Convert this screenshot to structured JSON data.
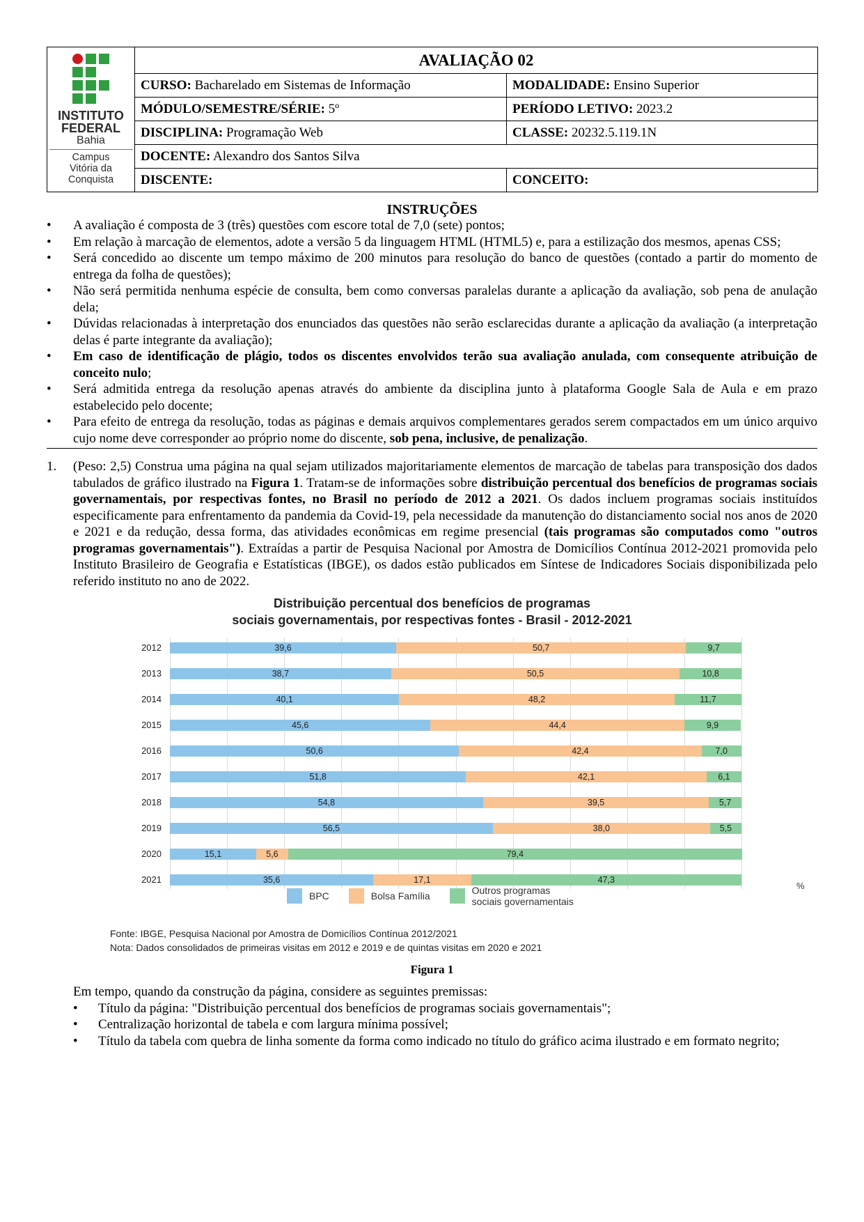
{
  "header": {
    "title": "AVALIAÇÃO 02",
    "logo": {
      "name": "INSTITUTO\nFEDERAL",
      "state": "Bahia",
      "campus": "Campus\nVitória da\nConquista"
    },
    "rows": [
      {
        "left_label": "CURSO:",
        "left_value": "Bacharelado em Sistemas de Informação",
        "right_label": "MODALIDADE:",
        "right_value": "Ensino Superior"
      },
      {
        "left_label": "MÓDULO/SEMESTRE/SÉRIE:",
        "left_value": "5º",
        "right_label": "PERÍODO LETIVO:",
        "right_value": "2023.2"
      },
      {
        "left_label": "DISCIPLINA:",
        "left_value": "Programação Web",
        "right_label": "CLASSE:",
        "right_value": "20232.5.119.1N"
      }
    ],
    "docente_label": "DOCENTE:",
    "docente_value": "Alexandro dos Santos Silva",
    "discente_label": "DISCENTE:",
    "conceito_label": "CONCEITO:"
  },
  "instructions": {
    "title": "INSTRUÇÕES",
    "items": [
      {
        "text": "A avaliação é composta de 3 (três) questões com escore total de 7,0 (sete) pontos;"
      },
      {
        "text": "Em relação à marcação de elementos, adote a versão 5 da linguagem HTML (HTML5) e, para a estilização dos mesmos, apenas CSS;"
      },
      {
        "text": "Será concedido ao discente um tempo máximo de 200 minutos para resolução do banco de questões (contado a partir do momento de entrega da folha de questões);"
      },
      {
        "text": "Não será permitida nenhuma espécie de consulta, bem como conversas paralelas durante a aplicação da avaliação, sob pena de anulação dela;"
      },
      {
        "text": "Dúvidas relacionadas à interpretação dos enunciados das questões não serão esclarecidas durante a aplicação da avaliação (a interpretação delas é parte integrante da avaliação);"
      },
      {
        "bold": "Em caso de identificação de plágio, todos os discentes envolvidos terão sua avaliação anulada, com consequente atribuição de conceito nulo",
        "tail": ";"
      },
      {
        "text": "Será admitida entrega da resolução apenas através do ambiente da disciplina junto à plataforma Google Sala de Aula e em prazo estabelecido pelo docente;"
      },
      {
        "text": "Para efeito de entrega da resolução, todas as páginas e demais arquivos complementares gerados serem compactados em um único arquivo cujo nome deve corresponder ao próprio nome do discente, ",
        "bold_tail": "sob pena, inclusive, de penalização",
        "tail": "."
      }
    ]
  },
  "question1": {
    "number": "1.",
    "p1": "(Peso: 2,5) Construa uma página na qual sejam utilizados majoritariamente elementos de marcação de tabelas para transposição dos dados tabulados de gráfico ilustrado na ",
    "b1": "Figura 1",
    "p2": ". Tratam-se de informações sobre ",
    "b2": "distribuição percentual dos benefícios de programas sociais governamentais, por respectivas fontes, no Brasil no período de 2012 a 2021",
    "p3": ". Os dados incluem programas sociais instituídos especificamente para enfrentamento da pandemia da Covid-19, pela necessidade da manutenção do distanciamento social nos anos de 2020 e 2021 e da redução, dessa forma, das atividades econômicas em regime presencial ",
    "b3": "(tais programas são computados como \"outros programas governamentais\")",
    "p4": ". Extraídas a partir de Pesquisa Nacional por Amostra de Domicílios Contínua 2012-2021 promovida pelo Instituto Brasileiro de Geografia e Estatísticas (IBGE), os dados estão publicados em Síntese de Indicadores Sociais disponibilizada pelo referido instituto no ano de 2022."
  },
  "chart_data": {
    "type": "bar",
    "orientation": "horizontal",
    "stacked": true,
    "title_line1": "Distribuição percentual dos benefícios de programas",
    "title_line2": "sociais governamentais, por respectivas fontes - Brasil - 2012-2021",
    "unit": "%",
    "categories": [
      "2012",
      "2013",
      "2014",
      "2015",
      "2016",
      "2017",
      "2018",
      "2019",
      "2020",
      "2021"
    ],
    "series": [
      {
        "name": "BPC",
        "color": "#8dc5ea",
        "values": [
          39.6,
          38.7,
          40.1,
          45.6,
          50.6,
          51.8,
          54.8,
          56.5,
          15.1,
          35.6
        ],
        "labels": [
          "39,6",
          "38,7",
          "40,1",
          "45,6",
          "50,6",
          "51,8",
          "54,8",
          "56,5",
          "15,1",
          "35,6"
        ]
      },
      {
        "name": "Bolsa Família",
        "color": "#f9c392",
        "values": [
          50.7,
          50.5,
          48.2,
          44.4,
          42.4,
          42.1,
          39.5,
          38.0,
          5.6,
          17.1
        ],
        "labels": [
          "50,7",
          "50,5",
          "48,2",
          "44,4",
          "42,4",
          "42,1",
          "39,5",
          "38,0",
          "5,6",
          "17,1"
        ]
      },
      {
        "name": "Outros programas\nsociais governamentais",
        "color": "#8ccf9f",
        "values": [
          9.7,
          10.8,
          11.7,
          9.9,
          7.0,
          6.1,
          5.7,
          5.5,
          79.4,
          47.3
        ],
        "labels": [
          "9,7",
          "10,8",
          "11,7",
          "9,9",
          "7,0",
          "6,1",
          "5,7",
          "5,5",
          "79,4",
          "47,3"
        ]
      }
    ],
    "xlim": [
      0,
      100
    ],
    "legend_position": "bottom",
    "source": "Fonte: IBGE, Pesquisa Nacional por Amostra de Domicílios Contínua 2012/2021",
    "note": "Nota: Dados consolidados de primeiras visitas em 2012 e 2019 e de quintas visitas em 2020 e 2021"
  },
  "figure_caption": "Figura 1",
  "premises": {
    "intro": "Em tempo, quando da construção da página, considere as seguintes premissas:",
    "items": [
      "Título da página: \"Distribuição percentual dos benefícios de programas sociais governamentais\";",
      "Centralização horizontal de tabela e com largura mínima possível;",
      "Título da tabela com quebra de linha somente da forma como indicado no título do gráfico acima ilustrado e em formato negrito;"
    ]
  }
}
